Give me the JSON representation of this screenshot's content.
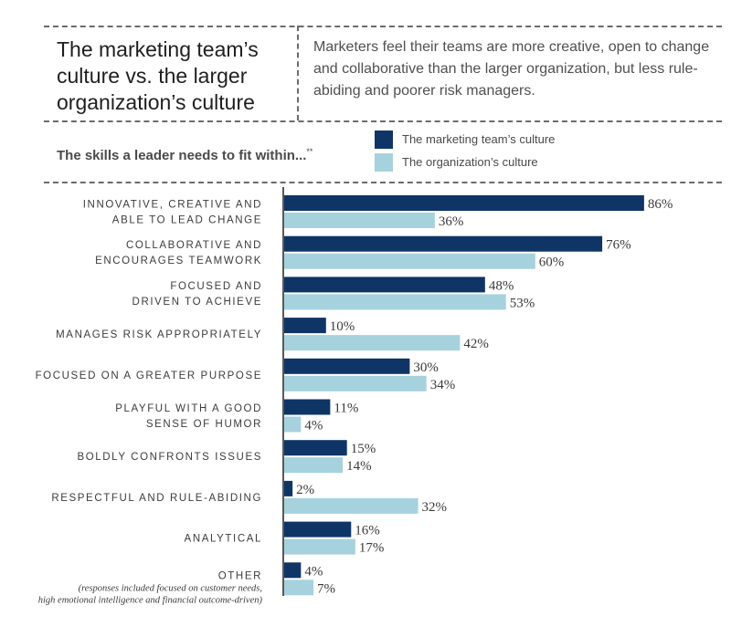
{
  "header": {
    "title": "The marketing team’s culture vs. the larger organization’s culture",
    "subtitle": "Marketers feel their teams are more creative, open to change and collaborative than the larger organization, but less rule-abiding and poorer risk managers."
  },
  "chart_data": {
    "type": "bar",
    "orientation": "horizontal",
    "title": "The skills a leader needs to fit within...",
    "title_marker": "**",
    "categories": [
      [
        "INNOVATIVE, CREATIVE AND",
        "ABLE TO LEAD CHANGE"
      ],
      [
        "COLLABORATIVE AND",
        "ENCOURAGES TEAMWORK"
      ],
      [
        "FOCUSED AND",
        "DRIVEN TO ACHIEVE"
      ],
      [
        "MANAGES RISK APPROPRIATELY"
      ],
      [
        "FOCUSED ON A GREATER PURPOSE"
      ],
      [
        "PLAYFUL WITH A GOOD",
        "SENSE OF HUMOR"
      ],
      [
        "BOLDLY CONFRONTS ISSUES"
      ],
      [
        "RESPECTFUL AND RULE-ABIDING"
      ],
      [
        "ANALYTICAL"
      ],
      [
        "OTHER"
      ]
    ],
    "category_notes": {
      "9": [
        "(responses included focused on customer needs,",
        "high emotional intelligence and financial outcome-driven)"
      ]
    },
    "series": [
      {
        "name": "The marketing team’s culture",
        "color": "#0f3566",
        "values": [
          86,
          76,
          48,
          10,
          30,
          11,
          15,
          2,
          16,
          4
        ],
        "labels": [
          "86%",
          "76%",
          "48%",
          "10%",
          "30%",
          "11%",
          "15%",
          "2%",
          "16%",
          "4%"
        ]
      },
      {
        "name": "The organization’s culture",
        "color": "#a6d2dd",
        "values": [
          36,
          60,
          53,
          42,
          34,
          4,
          14,
          32,
          17,
          7
        ],
        "labels": [
          "36%",
          "60%",
          "53%",
          "42%",
          "34%",
          "4%",
          "14%",
          "32%",
          "17%",
          "7%"
        ]
      }
    ],
    "xlim": [
      0,
      100
    ],
    "legend_position": "top-right",
    "grid": false
  }
}
